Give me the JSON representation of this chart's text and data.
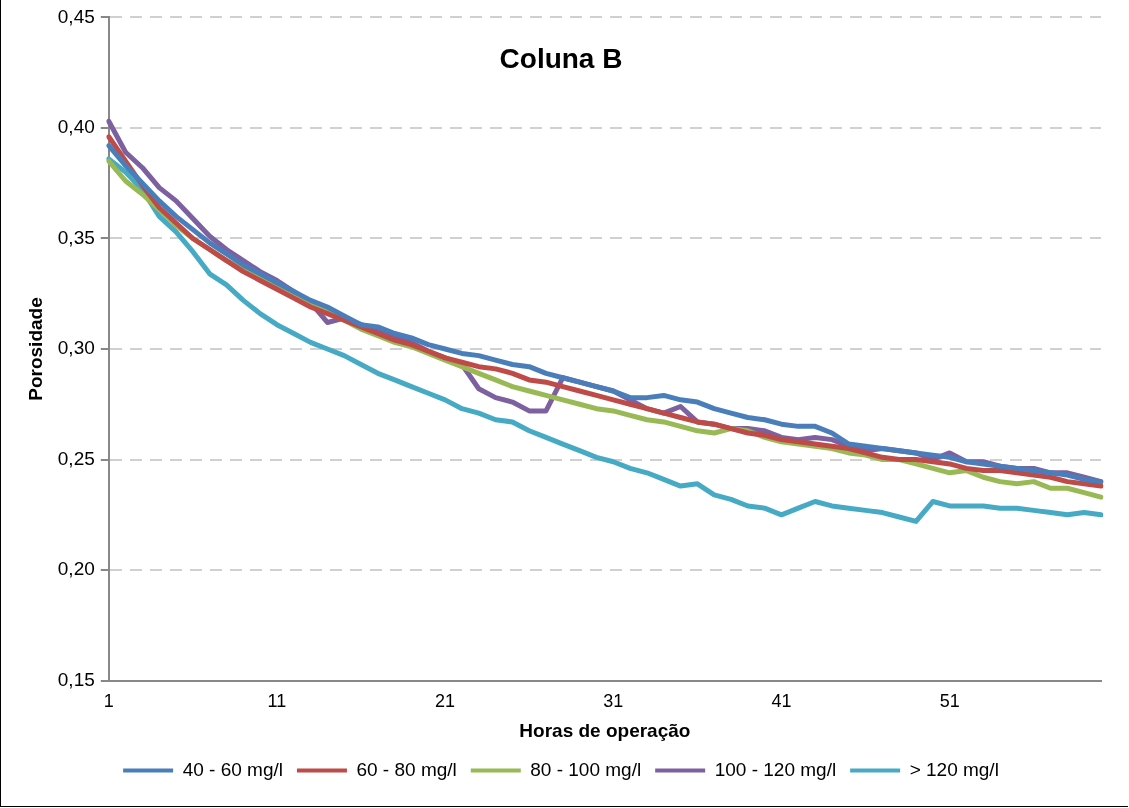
{
  "chart_data": {
    "type": "line",
    "title": "Coluna B",
    "xlabel": "Horas de operação",
    "ylabel": "Porosidade",
    "categories": [
      "1",
      null,
      null,
      null,
      null,
      null,
      null,
      null,
      null,
      null,
      "11",
      null,
      null,
      null,
      null,
      null,
      null,
      null,
      null,
      null,
      "21",
      null,
      null,
      null,
      null,
      null,
      null,
      null,
      null,
      null,
      "31",
      null,
      null,
      null,
      null,
      null,
      null,
      null,
      null,
      null,
      "41",
      null,
      null,
      null,
      null,
      null,
      null,
      null,
      null,
      null,
      "51",
      null,
      null,
      null,
      null,
      null,
      null,
      null,
      null,
      null
    ],
    "ylim": [
      0.15,
      0.45
    ],
    "yticks": [
      {
        "value": 0.15,
        "label": "0,15"
      },
      {
        "value": 0.2,
        "label": "0,20"
      },
      {
        "value": 0.25,
        "label": "0,25"
      },
      {
        "value": 0.3,
        "label": "0,30"
      },
      {
        "value": 0.35,
        "label": "0,35"
      },
      {
        "value": 0.4,
        "label": "0,40"
      },
      {
        "value": 0.45,
        "label": "0,45"
      }
    ],
    "grid": "y",
    "legend": "bottom",
    "marker": "none",
    "series": [
      {
        "name": "40 - 60 mg/l",
        "color": "#4a7ebb",
        "values": [
          0.392,
          0.383,
          0.375,
          0.367,
          0.36,
          0.354,
          0.348,
          0.343,
          0.338,
          0.334,
          0.33,
          0.326,
          0.322,
          0.319,
          0.315,
          0.311,
          0.31,
          0.307,
          0.305,
          0.302,
          0.3,
          0.298,
          0.297,
          0.295,
          0.293,
          0.292,
          0.289,
          0.287,
          0.285,
          0.283,
          0.281,
          0.278,
          0.278,
          0.279,
          0.277,
          0.276,
          0.273,
          0.271,
          0.269,
          0.268,
          0.266,
          0.265,
          0.265,
          0.262,
          0.257,
          0.256,
          0.255,
          0.254,
          0.253,
          0.252,
          0.251,
          0.249,
          0.248,
          0.247,
          0.246,
          0.245,
          0.244,
          0.243,
          0.241,
          0.24
        ]
      },
      {
        "name": "60 - 80 mg/l",
        "color": "#be4b48",
        "values": [
          0.396,
          0.385,
          0.374,
          0.364,
          0.357,
          0.35,
          0.345,
          0.34,
          0.335,
          0.331,
          0.327,
          0.323,
          0.319,
          0.316,
          0.313,
          0.31,
          0.307,
          0.304,
          0.302,
          0.299,
          0.296,
          0.294,
          0.292,
          0.291,
          0.289,
          0.286,
          0.285,
          0.283,
          0.281,
          0.279,
          0.277,
          0.275,
          0.273,
          0.271,
          0.269,
          0.267,
          0.266,
          0.264,
          0.262,
          0.261,
          0.259,
          0.258,
          0.257,
          0.256,
          0.255,
          0.253,
          0.251,
          0.25,
          0.25,
          0.249,
          0.248,
          0.246,
          0.245,
          0.245,
          0.244,
          0.243,
          0.242,
          0.24,
          0.239,
          0.238
        ]
      },
      {
        "name": "80 - 100 mg/l",
        "color": "#98b954",
        "values": [
          0.385,
          0.376,
          0.37,
          0.363,
          0.356,
          0.35,
          0.345,
          0.34,
          0.336,
          0.332,
          0.328,
          0.324,
          0.32,
          0.317,
          0.313,
          0.309,
          0.306,
          0.303,
          0.301,
          0.298,
          0.295,
          0.292,
          0.289,
          0.286,
          0.283,
          0.281,
          0.279,
          0.277,
          0.275,
          0.273,
          0.272,
          0.27,
          0.268,
          0.267,
          0.265,
          0.263,
          0.262,
          0.264,
          0.263,
          0.26,
          0.258,
          0.257,
          0.256,
          0.255,
          0.253,
          0.252,
          0.25,
          0.25,
          0.248,
          0.246,
          0.244,
          0.245,
          0.242,
          0.24,
          0.239,
          0.24,
          0.237,
          0.237,
          0.235,
          0.233
        ]
      },
      {
        "name": "100 - 120 mg/l",
        "color": "#7d60a0",
        "values": [
          0.403,
          0.389,
          0.382,
          0.373,
          0.367,
          0.359,
          0.351,
          0.345,
          0.34,
          0.335,
          0.331,
          0.326,
          0.321,
          0.312,
          0.314,
          0.311,
          0.308,
          0.306,
          0.303,
          0.299,
          0.296,
          0.293,
          0.282,
          0.278,
          0.276,
          0.272,
          0.272,
          0.287,
          0.285,
          0.283,
          0.281,
          0.277,
          0.273,
          0.271,
          0.274,
          0.267,
          0.266,
          0.264,
          0.264,
          0.263,
          0.26,
          0.259,
          0.26,
          0.259,
          0.256,
          0.254,
          0.255,
          0.254,
          0.253,
          0.25,
          0.253,
          0.249,
          0.249,
          0.247,
          0.246,
          0.246,
          0.244,
          0.244,
          0.242,
          0.24
        ]
      },
      {
        "name": "> 120 mg/l",
        "color": "#46aac5",
        "values": [
          0.386,
          0.38,
          0.372,
          0.36,
          0.353,
          0.344,
          0.334,
          0.329,
          0.322,
          0.316,
          0.311,
          0.307,
          0.303,
          0.3,
          0.297,
          0.293,
          0.289,
          0.286,
          0.283,
          0.28,
          0.277,
          0.273,
          0.271,
          0.268,
          0.267,
          0.263,
          0.26,
          0.257,
          0.254,
          0.251,
          0.249,
          0.246,
          0.244,
          0.241,
          0.238,
          0.239,
          0.234,
          0.232,
          0.229,
          0.228,
          0.225,
          0.228,
          0.231,
          0.229,
          0.228,
          0.227,
          0.226,
          0.224,
          0.222,
          0.231,
          0.229,
          0.229,
          0.229,
          0.228,
          0.228,
          0.227,
          0.226,
          0.225,
          0.226,
          0.225
        ]
      }
    ]
  }
}
